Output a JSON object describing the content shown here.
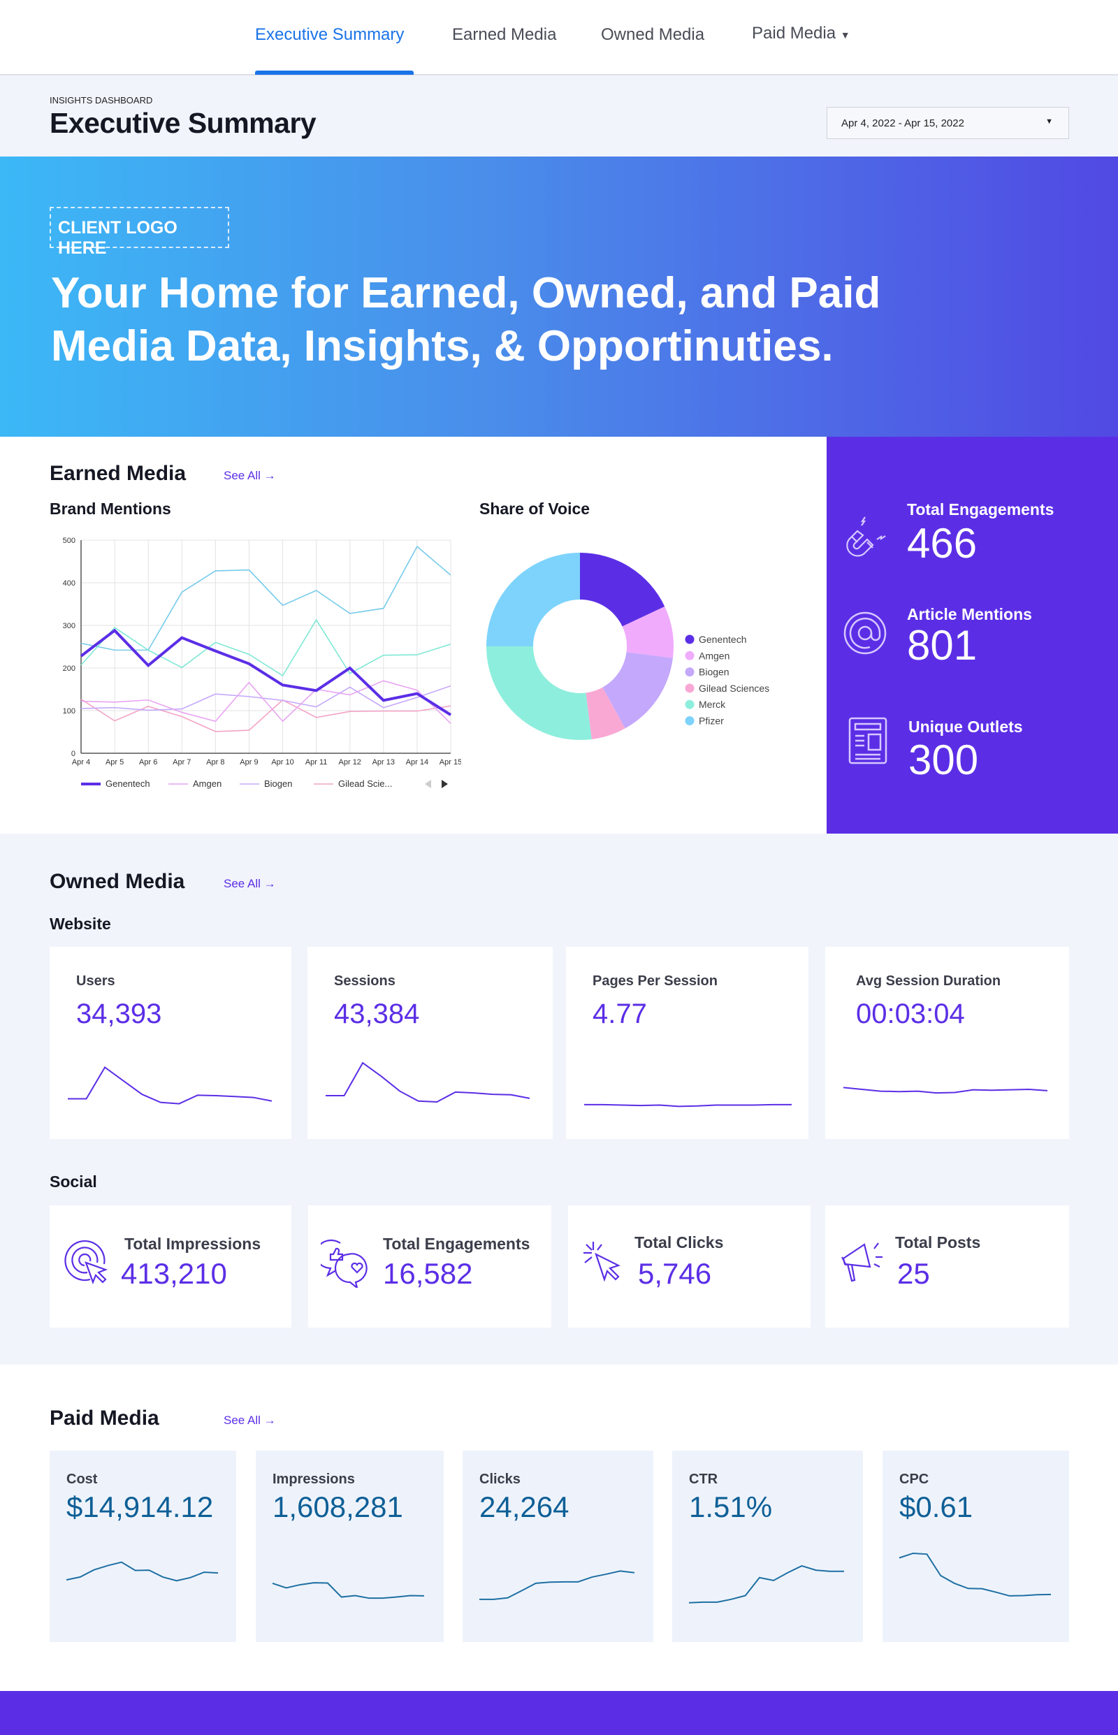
{
  "nav": {
    "tabs": [
      {
        "label": "Executive Summary",
        "active": true
      },
      {
        "label": "Earned Media"
      },
      {
        "label": "Owned Media"
      },
      {
        "label": "Paid Media",
        "dropdown": true
      }
    ]
  },
  "header": {
    "eyebrow": "INSIGHTS DASHBOARD",
    "title": "Executive Summary",
    "date_range": "Apr 4, 2022 - Apr 15, 2022"
  },
  "hero": {
    "logo_placeholder": "CLIENT LOGO HERE",
    "headline_line1": "Your Home for Earned, Owned, and Paid",
    "headline_line2": "Media Data, Insights, & Opportinuties."
  },
  "earned": {
    "title": "Earned Media",
    "see_all": "See All →",
    "brand_mentions_title": "Brand Mentions",
    "share_of_voice_title": "Share of Voice",
    "stats": [
      {
        "label": "Total Engagements",
        "value": "466",
        "icon": "magnet-icon"
      },
      {
        "label": "Article Mentions",
        "value": "801",
        "icon": "at-sign-icon"
      },
      {
        "label": "Unique Outlets",
        "value": "300",
        "icon": "newspaper-icon"
      }
    ]
  },
  "chart_data": [
    {
      "type": "line",
      "title": "Brand Mentions",
      "x": [
        "Apr 4",
        "Apr 5",
        "Apr 6",
        "Apr 7",
        "Apr 8",
        "Apr 9",
        "Apr 10",
        "Apr 11",
        "Apr 12",
        "Apr 13",
        "Apr 14",
        "Apr 15"
      ],
      "ylim": [
        0,
        500
      ],
      "yticks": [
        0,
        100,
        200,
        300,
        400,
        500
      ],
      "grid": true,
      "legend": "bottom",
      "legend_visible": [
        "Genentech",
        "Amgen",
        "Biogen",
        "Gilead Scie..."
      ],
      "series": [
        {
          "name": "Genentech",
          "color": "#5b2ee6",
          "values": [
            228,
            288,
            206,
            271,
            240,
            210,
            160,
            147,
            200,
            124,
            140,
            90
          ]
        },
        {
          "name": "Amgen",
          "color": "#e8a4f2",
          "values": [
            122,
            120,
            125,
            96,
            75,
            166,
            75,
            150,
            137,
            170,
            148,
            70
          ]
        },
        {
          "name": "Biogen",
          "color": "#c4a8fc",
          "values": [
            105,
            107,
            101,
            104,
            139,
            133,
            124,
            109,
            155,
            107,
            131,
            158
          ]
        },
        {
          "name": "Gilead Sciences",
          "color": "#f4a3c6",
          "values": [
            127,
            76,
            110,
            86,
            51,
            54,
            125,
            84,
            98,
            99,
            99,
            111
          ]
        },
        {
          "name": "Merck",
          "color": "#7fe8d5",
          "values": [
            207,
            295,
            242,
            201,
            260,
            232,
            182,
            313,
            187,
            230,
            231,
            256
          ]
        },
        {
          "name": "Pfizer",
          "color": "#76cbea",
          "values": [
            258,
            242,
            242,
            378,
            428,
            430,
            347,
            382,
            328,
            340,
            485,
            418
          ]
        }
      ]
    },
    {
      "type": "pie",
      "donut": true,
      "title": "Share of Voice",
      "legend": "right",
      "categories": [
        "Genentech",
        "Amgen",
        "Biogen",
        "Gilead Sciences",
        "Merck",
        "Pfizer"
      ],
      "values": [
        18,
        9,
        15,
        6,
        27,
        25
      ],
      "colors": [
        "#5b2ee6",
        "#f0abfc",
        "#c4a8fc",
        "#f9a8d4",
        "#8eeedd",
        "#7dd3fc"
      ]
    }
  ],
  "owned": {
    "title": "Owned Media",
    "see_all": "See All →",
    "website_title": "Website",
    "website": [
      {
        "label": "Users",
        "value": "34,393",
        "trend": [
          35,
          35,
          105,
          75,
          45,
          27,
          24,
          43,
          42,
          40,
          38,
          30
        ],
        "range": [
          0,
          140
        ]
      },
      {
        "label": "Sessions",
        "value": "43,384",
        "trend": [
          42,
          42,
          115,
          85,
          52,
          30,
          28,
          50,
          48,
          45,
          44,
          36
        ],
        "range": [
          0,
          140
        ]
      },
      {
        "label": "Pages Per Session",
        "value": "4.77",
        "trend": [
          22,
          22,
          21,
          20,
          21,
          18,
          19,
          21,
          21,
          21,
          22,
          22
        ],
        "range": [
          0,
          140
        ]
      },
      {
        "label": "Avg Session Duration",
        "value": "00:03:04",
        "trend": [
          60,
          56,
          52,
          51,
          52,
          48,
          49,
          55,
          54,
          55,
          56,
          53
        ],
        "range": [
          0,
          140
        ]
      }
    ],
    "social_title": "Social",
    "social": [
      {
        "label": "Total Impressions",
        "value": "413,210",
        "icon": "target-click-icon"
      },
      {
        "label": "Total Engagements",
        "value": "16,582",
        "icon": "chat-like-icon"
      },
      {
        "label": "Total Clicks",
        "value": "5,746",
        "icon": "cursor-click-icon"
      },
      {
        "label": "Total Posts",
        "value": "25",
        "icon": "megaphone-icon"
      }
    ]
  },
  "paid": {
    "title": "Paid Media",
    "see_all": "See All →",
    "cards": [
      {
        "label": "Cost",
        "value": "$14,914.12",
        "trend": [
          190,
          200,
          225,
          240,
          252,
          223,
          224,
          200,
          187,
          198,
          217,
          214
        ]
      },
      {
        "label": "Impressions",
        "value": "1,608,281",
        "trend": [
          178,
          162,
          173,
          180,
          179,
          130,
          135,
          126,
          126,
          130,
          135,
          134
        ]
      },
      {
        "label": "Clicks",
        "value": "24,264",
        "trend": [
          122,
          122,
          127,
          152,
          178,
          182,
          183,
          183,
          200,
          210,
          221,
          215
        ]
      },
      {
        "label": "CTR",
        "value": "1.51%",
        "trend": [
          110,
          112,
          112,
          122,
          135,
          198,
          188,
          215,
          239,
          224,
          220,
          220
        ]
      },
      {
        "label": "CPC",
        "value": "$0.61",
        "trend": [
          267,
          283,
          280,
          205,
          178,
          160,
          159,
          147,
          134,
          135,
          138,
          139
        ]
      }
    ],
    "trend_range": [
      80,
      300
    ]
  },
  "colors": {
    "accent": "#5b2ee6",
    "nav_active": "#1a73e8",
    "paid_value": "#0e5f96",
    "section_bg": "#f1f4fb"
  }
}
